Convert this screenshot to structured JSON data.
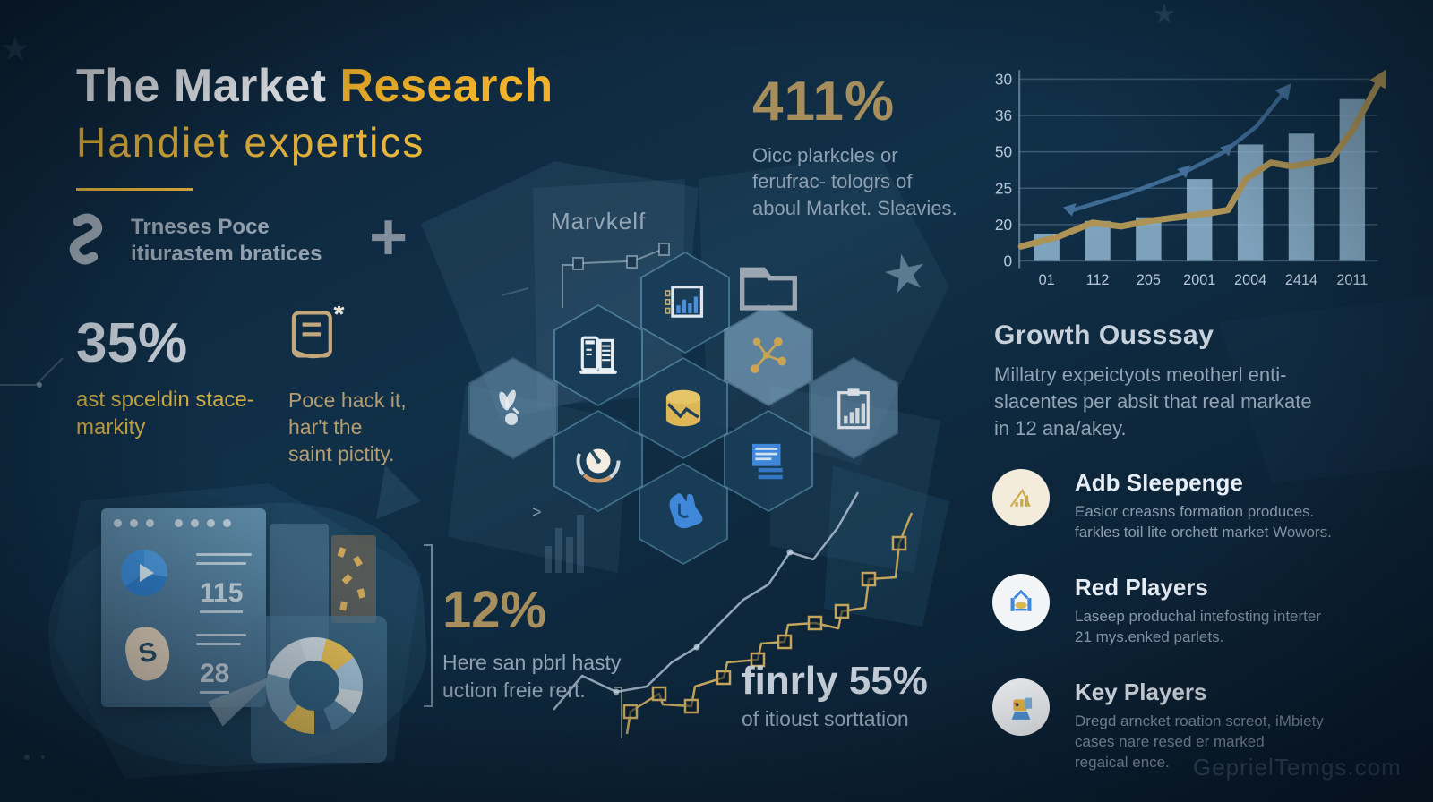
{
  "header": {
    "title_white": "The Market ",
    "title_yellow": "Research",
    "subtitle": "Handiet expertics",
    "brand_line1": "Trneses Poce",
    "brand_line2": "itiurastem bratices"
  },
  "stats": {
    "s411": {
      "value": "411%",
      "lines": [
        "Oicc plarkcles or",
        "ferufrac- tologrs of",
        "aboul Market. Sleavies."
      ]
    },
    "s35": {
      "value": "35%",
      "lines": [
        "ast spceldin stace-",
        "markity"
      ]
    },
    "note": {
      "lines": [
        "Poce hack it,",
        "har't the",
        "saint pictity."
      ]
    },
    "s12": {
      "value": "12%",
      "lines": [
        "Here san pbrl hasty",
        "uction freie rert."
      ]
    },
    "s55": {
      "prefix": "finrly ",
      "value": "55%",
      "caption": "of itioust sorttation"
    }
  },
  "center": {
    "label": "Marvkelf",
    "plus": "+"
  },
  "growth": {
    "heading": "Growth Ousssay",
    "lines": [
      "Millatry expeictyots  meotherl enti-",
      "slacentes per absit that real markate",
      "in 12 ana/akey."
    ]
  },
  "players": {
    "items": [
      {
        "title": "Adb Sleepenge",
        "lines": [
          "Easior creasns formation produces.",
          "farkles toil lite orchett market Wowors."
        ]
      },
      {
        "title": "Red Players",
        "lines": [
          "Laseep produchal intefosting interter",
          "21 mys.enked parlets."
        ]
      },
      {
        "title": "Key Players",
        "lines": [
          "Dregd arncket roation screot, iMbiety",
          "cases nare resed er marked",
          "regaical ence."
        ]
      }
    ]
  },
  "illustration": {
    "num1": "115",
    "num2": "28",
    "s_glyph": "S"
  },
  "watermark": "GeprielTemgs.com",
  "colors": {
    "accent_yellow": "#f2b32a",
    "gold": "#a68f5d",
    "silver": "#c3ccd6",
    "text_gray": "#93a4b5"
  },
  "chart_data": [
    {
      "type": "bar",
      "title": "",
      "categories": [
        "01",
        "112",
        "205",
        "2001",
        "2004",
        "2414",
        "2011"
      ],
      "y_tick_labels_top_to_bottom": [
        "30",
        "36",
        "50",
        "25",
        "20",
        "0"
      ],
      "ylim": [
        0,
        100
      ],
      "grid": true,
      "legend": "none",
      "bar_values": [
        15,
        22,
        24,
        45,
        64,
        70,
        89
      ],
      "series": [
        {
          "name": "gold-trend",
          "type": "line",
          "points": [
            [
              0,
              8
            ],
            [
              10,
              13
            ],
            [
              20,
              21
            ],
            [
              28,
              19
            ],
            [
              36,
              22
            ],
            [
              44,
              24
            ],
            [
              52,
              26
            ],
            [
              58,
              28
            ],
            [
              63,
              45
            ],
            [
              70,
              54
            ],
            [
              76,
              52
            ],
            [
              82,
              54
            ],
            [
              87,
              56
            ],
            [
              93,
              72
            ],
            [
              100,
              97
            ]
          ]
        },
        {
          "name": "blue-trend",
          "type": "line",
          "points": [
            [
              13,
              27
            ],
            [
              30,
              37
            ],
            [
              45,
              48
            ],
            [
              57,
              60
            ],
            [
              66,
              74
            ],
            [
              73,
              91
            ]
          ],
          "marker_idx": [
            0,
            2,
            3
          ]
        }
      ],
      "bar_color": "#9ec4de",
      "gold_color": "#ad9356",
      "blue_color": "#44719c"
    },
    {
      "type": "line",
      "title": "stepped growth path",
      "gold_steps": [
        [
          100,
          285
        ],
        [
          104,
          260
        ],
        [
          136,
          240
        ],
        [
          140,
          252
        ],
        [
          172,
          254
        ],
        [
          176,
          232
        ],
        [
          208,
          222
        ],
        [
          212,
          205
        ],
        [
          246,
          202
        ],
        [
          250,
          184
        ],
        [
          276,
          182
        ],
        [
          280,
          163
        ],
        [
          310,
          161
        ],
        [
          336,
          167
        ],
        [
          340,
          148
        ],
        [
          366,
          144
        ],
        [
          370,
          112
        ],
        [
          400,
          110
        ],
        [
          404,
          72
        ],
        [
          418,
          38
        ]
      ],
      "square_idx": [
        1,
        2,
        4,
        6,
        8,
        10,
        12,
        14,
        16,
        18
      ],
      "silver_points": [
        [
          18,
          258
        ],
        [
          50,
          220
        ],
        [
          88,
          238
        ],
        [
          122,
          232
        ],
        [
          150,
          205
        ],
        [
          178,
          188
        ],
        [
          205,
          160
        ],
        [
          230,
          135
        ],
        [
          258,
          118
        ],
        [
          282,
          82
        ],
        [
          308,
          90
        ],
        [
          335,
          55
        ],
        [
          358,
          15
        ]
      ],
      "dot_idx": [
        2,
        5,
        9
      ],
      "faint_bars": [
        30,
        50,
        40,
        65
      ],
      "gold_color": "#c2a45c",
      "silver_color": "rgba(205,220,235,0.7)"
    },
    {
      "type": "pie",
      "title": "donut illustration",
      "segments": [
        {
          "color": "#c9d5dd",
          "from": 0,
          "to": 9
        },
        {
          "color": "#e2bd55",
          "from": 9,
          "to": 20
        },
        {
          "color": "#a3c2d6",
          "from": 20,
          "to": 32
        },
        {
          "color": "#cdd8df",
          "from": 32,
          "to": 40
        },
        {
          "color": "#54809f",
          "from": 40,
          "to": 49
        },
        {
          "color": "#31597a",
          "from": 49,
          "to": 55
        },
        {
          "color": "#e2bd55",
          "from": 55,
          "to": 66
        },
        {
          "color": "#6c93ad",
          "from": 66,
          "to": 84
        },
        {
          "color": "#bfcdd6",
          "from": 84,
          "to": 100
        }
      ]
    }
  ]
}
